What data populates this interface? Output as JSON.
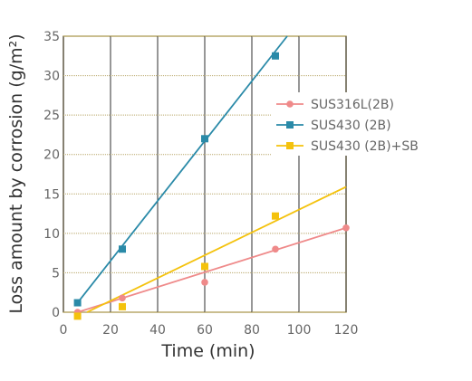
{
  "chart_data": {
    "type": "scatter",
    "xlabel": "Time (min)",
    "ylabel": "Loss amount by corrosion (g/m²)",
    "xlim": [
      0,
      120
    ],
    "ylim": [
      0,
      35
    ],
    "xticks": [
      0,
      20,
      40,
      60,
      80,
      100,
      120
    ],
    "yticks": [
      0,
      5,
      10,
      15,
      20,
      25,
      30,
      35
    ],
    "grid": true,
    "legend_position": "right",
    "series": [
      {
        "name": "SUS316L(2B)",
        "color": "#ef8a8a",
        "marker": "circle",
        "points": [
          {
            "x": 6,
            "y": 0
          },
          {
            "x": 25,
            "y": 1.8
          },
          {
            "x": 60,
            "y": 3.8
          },
          {
            "x": 90,
            "y": 8.0
          },
          {
            "x": 120,
            "y": 10.7
          }
        ],
        "fit": [
          {
            "x": 6,
            "y": 0
          },
          {
            "x": 120,
            "y": 10.7
          }
        ]
      },
      {
        "name": "SUS430 (2B)",
        "color": "#2a8aa8",
        "marker": "square",
        "points": [
          {
            "x": 6,
            "y": 1.2
          },
          {
            "x": 25,
            "y": 8.0
          },
          {
            "x": 60,
            "y": 22.0
          },
          {
            "x": 90,
            "y": 32.5
          }
        ],
        "fit": [
          {
            "x": 6,
            "y": 1.2
          },
          {
            "x": 95,
            "y": 35
          }
        ]
      },
      {
        "name": "SUS430 (2B)+SB",
        "color": "#f4c20d",
        "marker": "square",
        "points": [
          {
            "x": 6,
            "y": -0.5
          },
          {
            "x": 25,
            "y": 0.7
          },
          {
            "x": 60,
            "y": 5.8
          },
          {
            "x": 90,
            "y": 12.2
          }
        ],
        "fit": [
          {
            "x": 10,
            "y": 0
          },
          {
            "x": 120,
            "y": 15.9
          }
        ]
      }
    ]
  }
}
